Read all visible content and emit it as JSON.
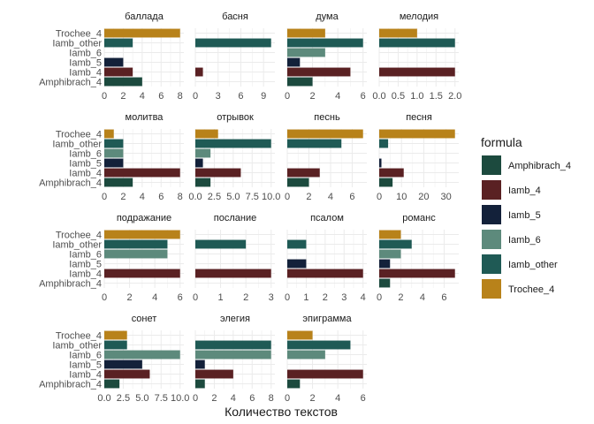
{
  "chart_data": {
    "type": "bar",
    "orientation": "horizontal",
    "xlabel": "Количество текстов",
    "grid": true,
    "legend": {
      "title": "formula",
      "placement": "right",
      "order": [
        "Amphibrach_4",
        "Iamb_4",
        "Iamb_5",
        "Iamb_6",
        "Iamb_other",
        "Trochee_4"
      ]
    },
    "categories": [
      "Trochee_4",
      "Iamb_other",
      "Iamb_6",
      "Iamb_5",
      "Iamb_4",
      "Amphibrach_4"
    ],
    "colors": {
      "Amphibrach_4": "#1c4a3e",
      "Iamb_4": "#5a2123",
      "Iamb_5": "#13213a",
      "Iamb_6": "#5d8a7c",
      "Iamb_other": "#1f5a55",
      "Trochee_4": "#b8821a"
    },
    "panels": [
      {
        "title": "баллада",
        "xlim": [
          0,
          8.4
        ],
        "ticks": [
          0,
          2,
          4,
          6,
          8
        ],
        "values": {
          "Trochee_4": 8,
          "Iamb_other": 3,
          "Iamb_5": 2,
          "Iamb_4": 3,
          "Amphibrach_4": 4
        }
      },
      {
        "title": "басня",
        "xlim": [
          0,
          10.5
        ],
        "ticks": [
          0,
          3,
          6,
          9
        ],
        "values": {
          "Iamb_other": 10,
          "Iamb_4": 1
        }
      },
      {
        "title": "дума",
        "xlim": [
          0,
          6.3
        ],
        "ticks": [
          0,
          2,
          4,
          6
        ],
        "values": {
          "Trochee_4": 3,
          "Iamb_other": 6,
          "Iamb_6": 3,
          "Iamb_5": 1,
          "Iamb_4": 5,
          "Amphibrach_4": 2
        }
      },
      {
        "title": "мелодия",
        "xlim": [
          0,
          2.1
        ],
        "ticks": [
          0,
          0.5,
          1,
          1.5,
          2
        ],
        "tick_labels": [
          "0.0",
          "0.5",
          "1.0",
          "1.5",
          "2.0"
        ],
        "values": {
          "Trochee_4": 1,
          "Iamb_other": 2,
          "Iamb_4": 2
        }
      },
      {
        "title": "молитва",
        "xlim": [
          0,
          8.4
        ],
        "ticks": [
          0,
          2,
          4,
          6,
          8
        ],
        "values": {
          "Trochee_4": 1,
          "Iamb_other": 2,
          "Iamb_6": 2,
          "Iamb_5": 2,
          "Iamb_4": 8,
          "Amphibrach_4": 3
        }
      },
      {
        "title": "отрывок",
        "xlim": [
          0,
          10.5
        ],
        "ticks": [
          0,
          2.5,
          5,
          7.5,
          10
        ],
        "tick_labels": [
          "0.0",
          "2.5",
          "5.0",
          "7.5",
          "10.0"
        ],
        "values": {
          "Trochee_4": 3,
          "Iamb_other": 10,
          "Iamb_6": 2,
          "Iamb_5": 1,
          "Iamb_4": 6,
          "Amphibrach_4": 2
        }
      },
      {
        "title": "песнь",
        "xlim": [
          0,
          7.35
        ],
        "ticks": [
          0,
          2,
          4,
          6
        ],
        "values": {
          "Trochee_4": 7,
          "Iamb_other": 5,
          "Iamb_4": 3,
          "Amphibrach_4": 2
        }
      },
      {
        "title": "песня",
        "xlim": [
          0,
          35.7
        ],
        "ticks": [
          0,
          10,
          20,
          30
        ],
        "values": {
          "Trochee_4": 34,
          "Iamb_other": 4,
          "Iamb_5": 1,
          "Iamb_4": 11,
          "Amphibrach_4": 6
        }
      },
      {
        "title": "подражание",
        "xlim": [
          0,
          6.3
        ],
        "ticks": [
          0,
          2,
          4,
          6
        ],
        "values": {
          "Trochee_4": 6,
          "Iamb_other": 5,
          "Iamb_6": 5,
          "Iamb_4": 6
        }
      },
      {
        "title": "послание",
        "xlim": [
          0,
          3.15
        ],
        "ticks": [
          0,
          1,
          2,
          3
        ],
        "values": {
          "Iamb_other": 2,
          "Iamb_4": 3
        }
      },
      {
        "title": "псалом",
        "xlim": [
          0,
          4.2
        ],
        "ticks": [
          0,
          1,
          2,
          3,
          4
        ],
        "values": {
          "Iamb_other": 1,
          "Iamb_5": 1,
          "Iamb_4": 4
        }
      },
      {
        "title": "романс",
        "xlim": [
          0,
          7.35
        ],
        "ticks": [
          0,
          2,
          4,
          6
        ],
        "values": {
          "Trochee_4": 2,
          "Iamb_other": 3,
          "Iamb_6": 2,
          "Iamb_5": 1,
          "Iamb_4": 7,
          "Amphibrach_4": 1
        }
      },
      {
        "title": "сонет",
        "xlim": [
          0,
          10.5
        ],
        "ticks": [
          0,
          2.5,
          5,
          7.5,
          10
        ],
        "tick_labels": [
          "0.0",
          "2.5",
          "5.0",
          "7.5",
          "10.0"
        ],
        "values": {
          "Trochee_4": 3,
          "Iamb_other": 3,
          "Iamb_6": 10,
          "Iamb_5": 5,
          "Iamb_4": 6,
          "Amphibrach_4": 2
        }
      },
      {
        "title": "элегия",
        "xlim": [
          0,
          8.4
        ],
        "ticks": [
          0,
          2,
          4,
          6,
          8
        ],
        "values": {
          "Iamb_other": 8,
          "Iamb_6": 8,
          "Iamb_5": 1,
          "Iamb_4": 4,
          "Amphibrach_4": 1
        }
      },
      {
        "title": "эпиграмма",
        "xlim": [
          0,
          6.3
        ],
        "ticks": [
          0,
          2,
          4,
          6
        ],
        "values": {
          "Trochee_4": 2,
          "Iamb_other": 5,
          "Iamb_6": 3,
          "Iamb_4": 6,
          "Amphibrach_4": 1
        }
      }
    ]
  }
}
